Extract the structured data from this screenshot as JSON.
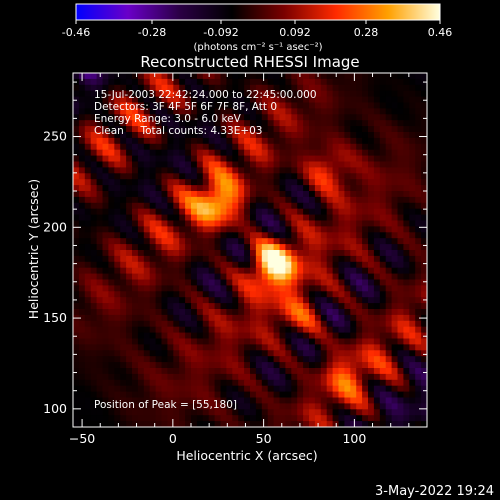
{
  "colorbar": {
    "ticks": [
      "-0.46",
      "-0.28",
      "-0.092",
      "0.092",
      "0.28",
      "0.46"
    ],
    "unit_label": "(photons cm⁻² s⁻¹ asec⁻²)",
    "colors": [
      "#0000ff",
      "#6a00c8",
      "#2a0044",
      "#000000",
      "#7a0000",
      "#ff2a00",
      "#ffa000",
      "#ffffe0"
    ]
  },
  "chart_data": {
    "type": "heatmap",
    "title": "Reconstructed RHESSI Image",
    "xlabel": "Heliocentric X (arcsec)",
    "ylabel": "Heliocentric Y (arcsec)",
    "xlim": [
      -55,
      140
    ],
    "ylim": [
      90,
      285
    ],
    "xticks": [
      -50,
      0,
      50,
      100
    ],
    "yticks": [
      100,
      150,
      200,
      250
    ],
    "zlim": [
      -0.46,
      0.46
    ],
    "grid": false,
    "peak": [
      55,
      180
    ],
    "sources": [
      {
        "x": 55,
        "y": 180,
        "amp": 0.46
      },
      {
        "x": 25,
        "y": 213,
        "amp": 0.32
      },
      {
        "x": 85,
        "y": 232,
        "amp": 0.22
      },
      {
        "x": 70,
        "y": 150,
        "amp": 0.18
      },
      {
        "x": 95,
        "y": 118,
        "amp": 0.15
      }
    ]
  },
  "annotations": {
    "time": "15-Jul-2003 22:42:24.000 to 22:45:00.000",
    "detectors": "Detectors: 3F 4F 5F 6F 7F 8F, Att 0",
    "energy": "Energy Range: 3.0 - 6.0 keV",
    "clean": "Clean     Total counts: 4.33E+03",
    "peak": "Position of Peak = [55,180]"
  },
  "footer": {
    "date": "3-May-2022 19:24"
  }
}
